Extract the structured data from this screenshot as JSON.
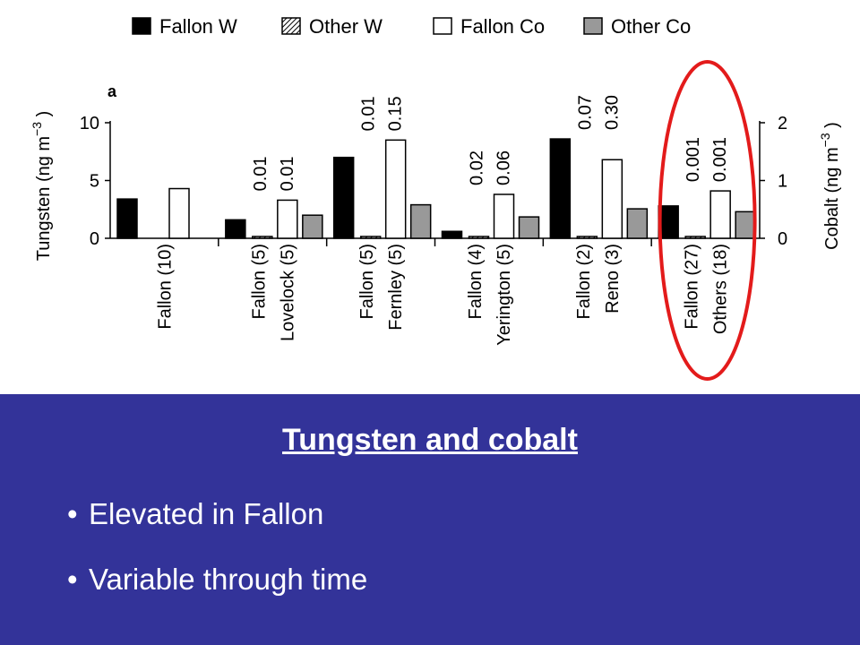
{
  "chart_data": {
    "type": "bar",
    "panel_label": "a",
    "legend": [
      {
        "name": "Fallon W",
        "style": "solid",
        "color": "#000000"
      },
      {
        "name": "Other W",
        "style": "hatched",
        "color": "#ffffff"
      },
      {
        "name": "Fallon Co",
        "style": "solid",
        "color": "#ffffff"
      },
      {
        "name": "Other Co",
        "style": "solid",
        "color": "#999999"
      }
    ],
    "legend_position": "top",
    "left_axis": {
      "label": "Tungsten (ng m",
      "unit_exp": "−3",
      "label_close": ")",
      "range": [
        0,
        10
      ],
      "ticks": [
        "0",
        "5",
        "10"
      ]
    },
    "right_axis": {
      "label": "Cobalt (ng m",
      "unit_exp": "−3",
      "label_close": ")",
      "range": [
        0,
        2
      ],
      "ticks": [
        "0",
        "1",
        "2"
      ]
    },
    "groups": [
      {
        "labels": [
          "Fallon (10)"
        ],
        "fallon_w": 3.4,
        "other_w": null,
        "fallon_co": 0.86,
        "other_co": null,
        "annotations": []
      },
      {
        "labels": [
          "Fallon (5)",
          "Lovelock (5)"
        ],
        "fallon_w": 1.6,
        "other_w": 0.01,
        "fallon_co": 0.66,
        "other_co": 0.4,
        "annotations": [
          "0.01",
          "0.01"
        ]
      },
      {
        "labels": [
          "Fallon (5)",
          "Fernley (5)"
        ],
        "fallon_w": 7.0,
        "other_w": 0.01,
        "fallon_co": 1.7,
        "other_co": 0.58,
        "annotations": [
          "0.01",
          "0.15"
        ]
      },
      {
        "labels": [
          "Fallon (4)",
          "Yerington (5)"
        ],
        "fallon_w": 0.6,
        "other_w": 0.02,
        "fallon_co": 0.76,
        "other_co": 0.37,
        "annotations": [
          "0.02",
          "0.06"
        ]
      },
      {
        "labels": [
          "Fallon (2)",
          "Reno (3)"
        ],
        "fallon_w": 8.6,
        "other_w": 0.07,
        "fallon_co": 1.36,
        "other_co": 0.51,
        "annotations": [
          "0.07",
          "0.30"
        ]
      },
      {
        "labels": [
          "Fallon (27)",
          "Others (18)"
        ],
        "fallon_w": 2.8,
        "other_w": 0.001,
        "fallon_co": 0.82,
        "other_co": 0.46,
        "annotations": [
          "0.001",
          "0.001"
        ]
      }
    ],
    "highlight": {
      "group_index": 5,
      "shape": "ellipse",
      "color": "#e31b1b"
    }
  },
  "slide": {
    "title": "Tungsten and cobalt",
    "bullets": [
      "Elevated in Fallon",
      "Variable through time"
    ],
    "bullet_symbol": "•",
    "band_color": "#333399"
  }
}
